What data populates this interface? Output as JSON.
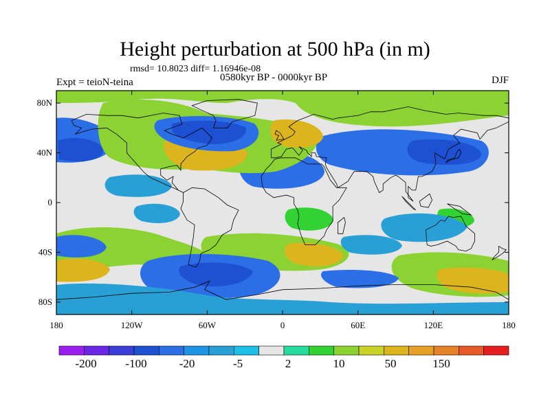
{
  "figure": {
    "title": "Height perturbation at 500 hPa (in m)",
    "stats": "rmsd= 10.8023 diff= 1.16946e-08",
    "left_label": "Expt = teioN-teina",
    "center_label": "0580kyr BP - 0000kyr BP",
    "right_label": "DJF"
  },
  "chart_data": {
    "type": "heatmap",
    "projection": "cylindrical equidistant",
    "x_ticks": [
      "180",
      "120W",
      "60W",
      "0",
      "60E",
      "120E",
      "180"
    ],
    "y_ticks": [
      "80N",
      "40N",
      "0",
      "40S",
      "80S"
    ],
    "xlim": [
      -180,
      180
    ],
    "ylim": [
      -90,
      90
    ],
    "colorbar": {
      "tick_labels": [
        "-200",
        "-100",
        "-20",
        "-5",
        "2",
        "10",
        "50",
        "150"
      ],
      "colors": [
        "#9a1ef0",
        "#6a28e6",
        "#3c3cd6",
        "#1e50d2",
        "#2c6ee6",
        "#1e96e6",
        "#28a0d6",
        "#1ebee6",
        "#e6e6e6",
        "#28dca0",
        "#32d232",
        "#8cd232",
        "#c8d228",
        "#dcb41e",
        "#e6a028",
        "#e68228",
        "#e65a28",
        "#e61e1e"
      ]
    },
    "field_colors": {
      "strong_negative": "#1e50d2",
      "negative": "#2c6ee6",
      "weak_negative": "#28a0d6",
      "near_zero": "#e6e6e6",
      "weak_positive": "#32d232",
      "positive": "#8cd232",
      "strong_positive": "#dcb41e",
      "coastline": "#000000"
    }
  }
}
